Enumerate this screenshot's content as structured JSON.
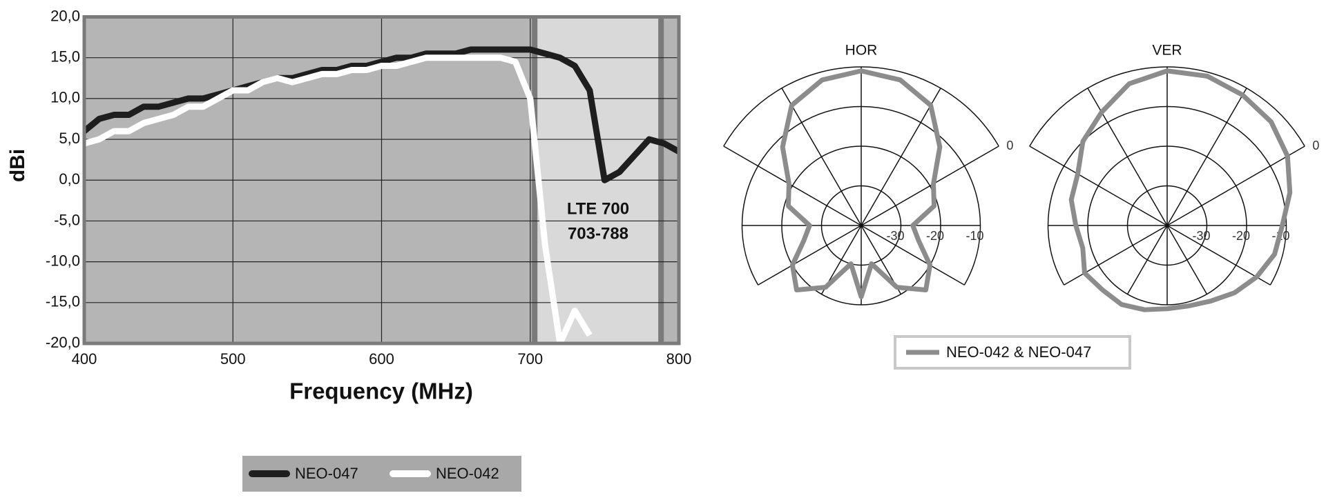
{
  "chart_data": [
    {
      "type": "line",
      "x_label": "Frequency (MHz)",
      "y_label": "dBi",
      "x": [
        400,
        410,
        420,
        430,
        440,
        450,
        460,
        470,
        480,
        490,
        500,
        510,
        520,
        530,
        540,
        550,
        560,
        570,
        580,
        590,
        600,
        610,
        620,
        630,
        640,
        650,
        660,
        670,
        680,
        690,
        700,
        710,
        720,
        730,
        740,
        750,
        760,
        770,
        780,
        790,
        800
      ],
      "series": [
        {
          "name": "NEO-047",
          "color": "#1e1e1e",
          "values": [
            6,
            7.5,
            8,
            8,
            9,
            9,
            9.5,
            10,
            10,
            10.5,
            11,
            11.5,
            12,
            12.5,
            12.5,
            13,
            13.5,
            13.5,
            14,
            14,
            14.5,
            15,
            15,
            15.5,
            15.5,
            15.5,
            16,
            16,
            16,
            16,
            16,
            15.5,
            15,
            14,
            11,
            0,
            1,
            3,
            5,
            4.5,
            3.5
          ]
        },
        {
          "name": "NEO-042",
          "color": "#ffffff",
          "values": [
            4.5,
            5,
            6,
            6,
            7,
            7.5,
            8,
            9,
            9,
            10,
            11,
            11,
            12,
            12.5,
            12,
            12.5,
            13,
            13,
            13.5,
            13.5,
            14,
            14,
            14.5,
            15,
            15,
            15,
            15,
            15,
            15,
            14.5,
            10,
            -8,
            -20,
            -16,
            -19,
            null,
            null,
            null,
            null,
            null,
            null
          ]
        }
      ],
      "xlim": [
        400,
        800
      ],
      "xticks": [
        400,
        500,
        600,
        700,
        800
      ],
      "ylim": [
        -20,
        20
      ],
      "yticks": [
        {
          "value": -20,
          "label": "-20,0"
        },
        {
          "value": -15,
          "label": "-15,0"
        },
        {
          "value": -10,
          "label": "-10,0"
        },
        {
          "value": -5,
          "label": "-5,0"
        },
        {
          "value": 0,
          "label": "0,0"
        },
        {
          "value": 5,
          "label": "5,0"
        },
        {
          "value": 10,
          "label": "10,0"
        },
        {
          "value": 15,
          "label": "15,0"
        },
        {
          "value": 20,
          "label": "20,0"
        }
      ],
      "band": [
        703,
        788
      ],
      "annotations": [
        "LTE 700",
        "703-788"
      ],
      "grid": true,
      "legend": "bottom"
    },
    {
      "type": "polar",
      "title": "HOR",
      "theta": [
        0,
        15,
        30,
        45,
        60,
        75,
        90,
        105,
        120,
        135,
        150,
        165,
        180,
        195,
        210,
        225,
        240,
        255,
        270,
        285,
        300,
        315,
        330,
        345
      ],
      "rlim": [
        -40,
        0
      ],
      "rticks": [
        -30,
        -20,
        -10,
        0
      ],
      "series": [
        {
          "name": "NEO-042 & NEO-047",
          "color": "#8c8c8c",
          "values": [
            -1,
            -2,
            -5,
            -12,
            -19,
            -21,
            -27,
            -25,
            -20,
            -17,
            -22,
            -30,
            -22,
            -30,
            -22,
            -17,
            -20,
            -25,
            -27,
            -21,
            -19,
            -12,
            -5,
            -2
          ]
        }
      ],
      "legend": "bottom"
    },
    {
      "type": "polar",
      "title": "VER",
      "theta": [
        0,
        15,
        30,
        45,
        60,
        75,
        90,
        105,
        120,
        135,
        150,
        165,
        180,
        195,
        210,
        225,
        240,
        255,
        270,
        285,
        300,
        315,
        330,
        345
      ],
      "rlim": [
        -40,
        0
      ],
      "rticks": [
        -30,
        -20,
        -10,
        0
      ],
      "series": [
        {
          "color": "#8c8c8c",
          "values": [
            -1,
            -1,
            -2,
            -3,
            -5,
            -8,
            -11,
            -12,
            -14,
            -16,
            -18,
            -19,
            -19,
            -18,
            -17,
            -17,
            -16,
            -18,
            -17,
            -15,
            -14,
            -10,
            -7,
            -3
          ]
        }
      ]
    }
  ]
}
